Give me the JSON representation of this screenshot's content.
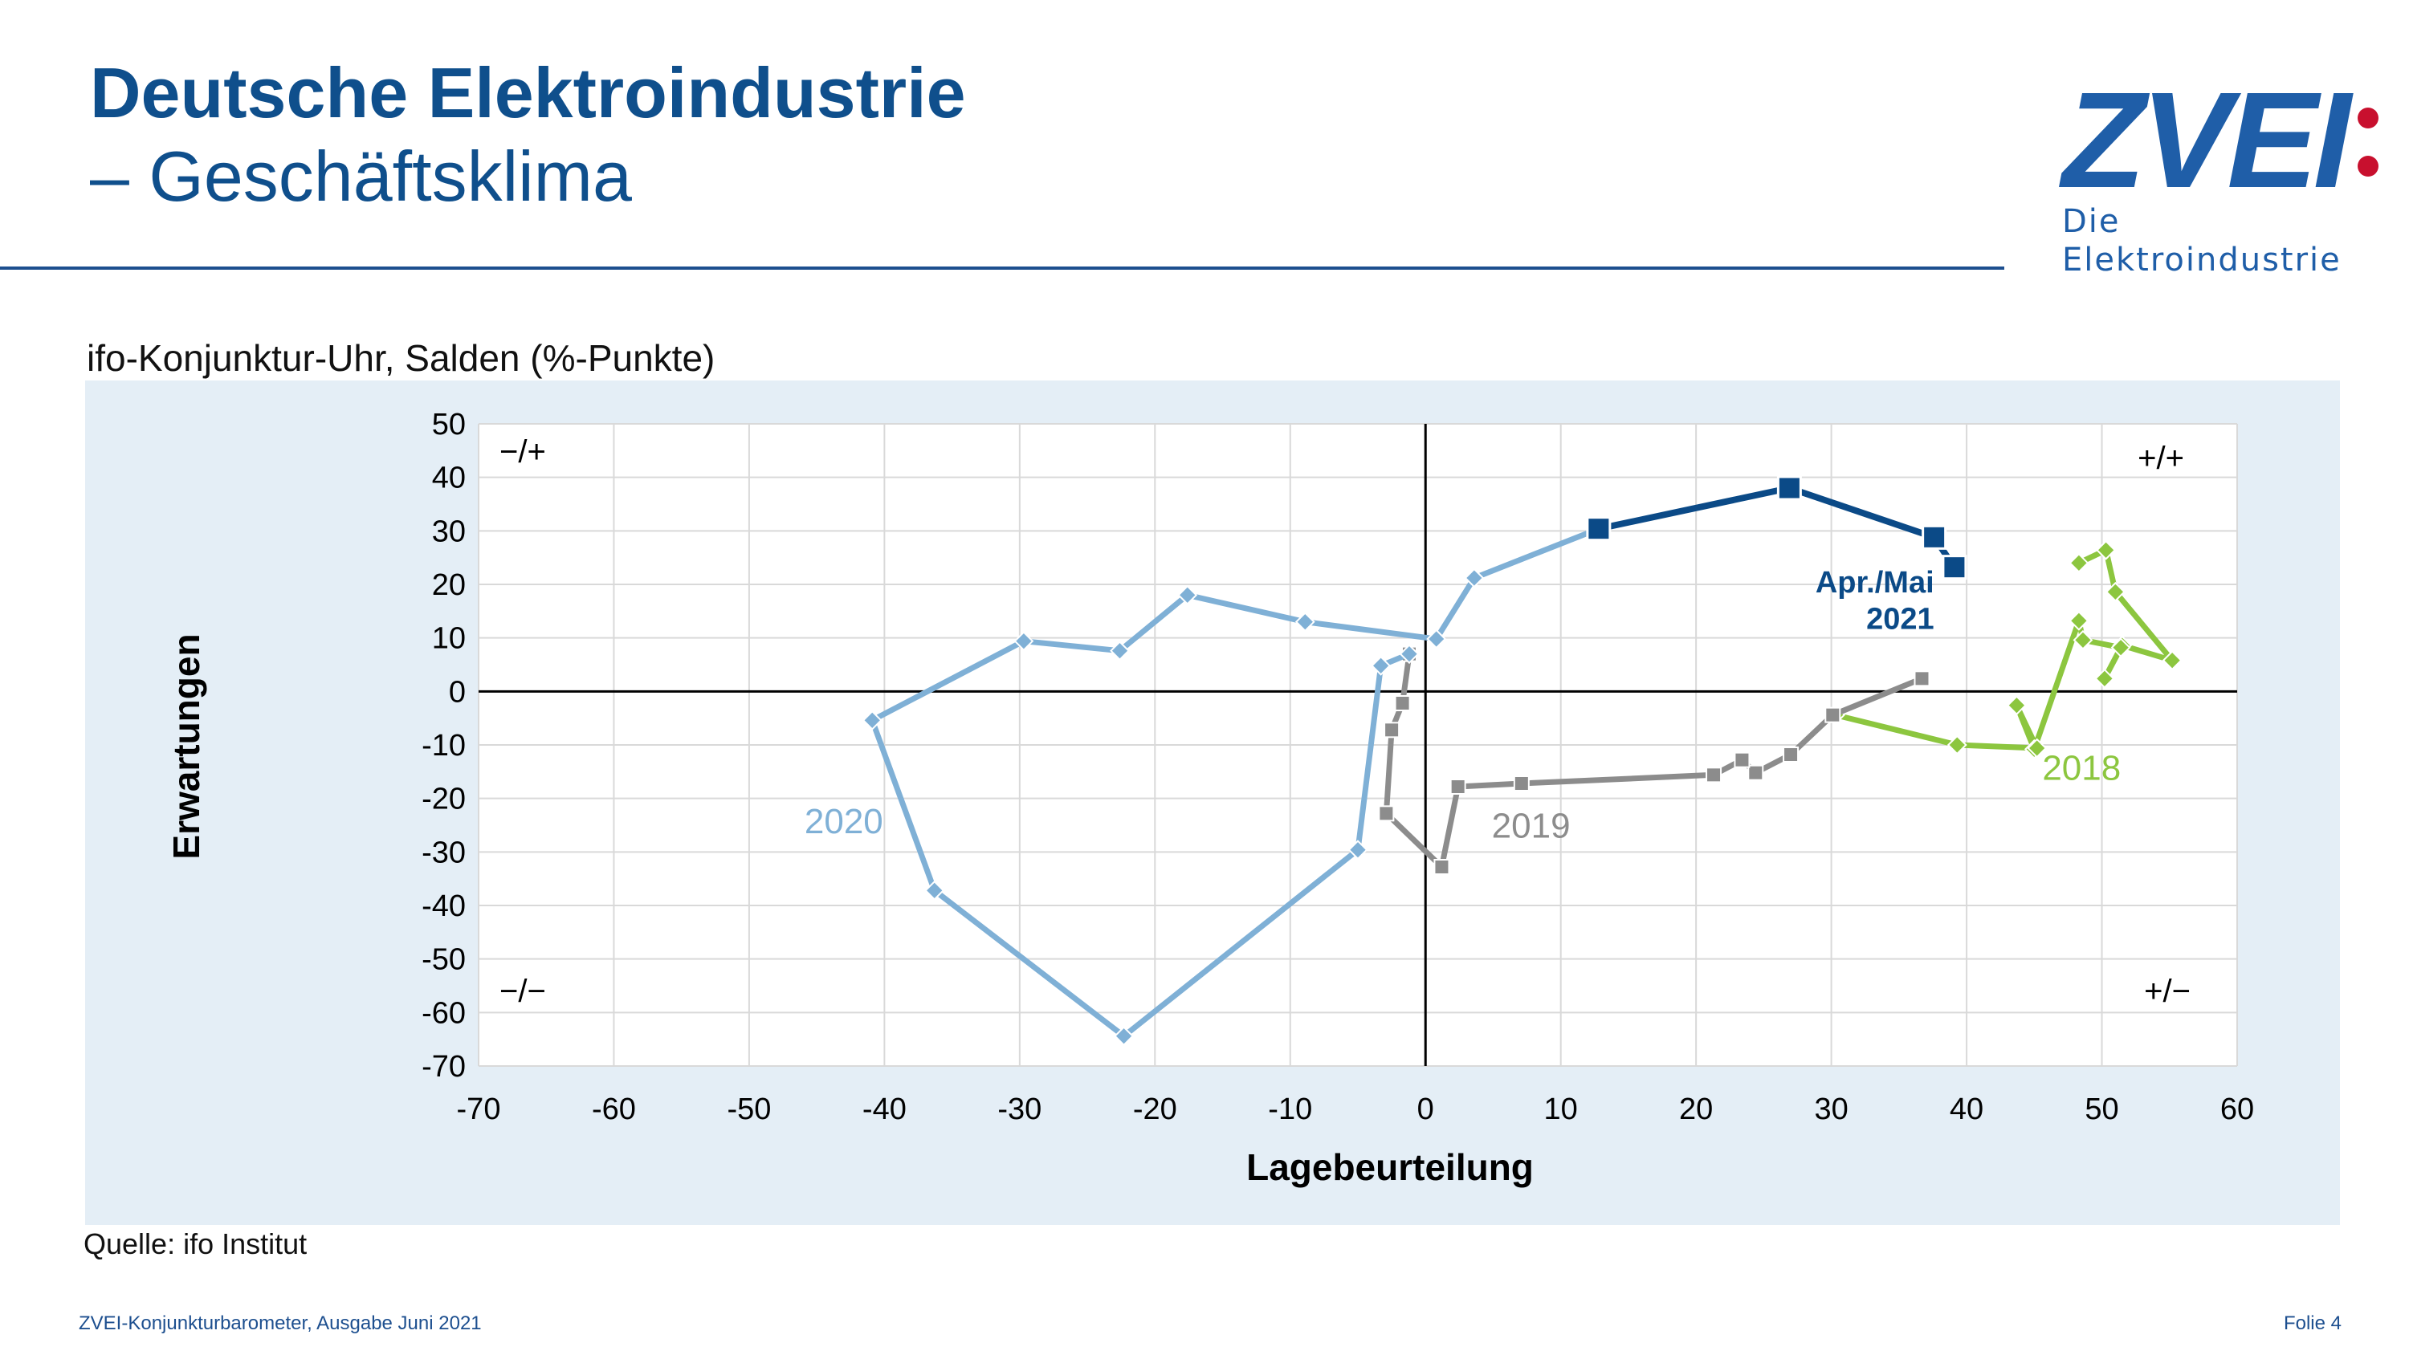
{
  "header": {
    "title": "Deutsche Elektroindustrie",
    "subtitle": "– Geschäftsklima"
  },
  "logo": {
    "wordmark": "ZVEI",
    "tagline": "Die Elektroindustrie",
    "dot_color": "#c8102e",
    "brand_color": "#1f5ea8"
  },
  "chart_heading": "ifo-Konjunktur-Uhr, Salden (%-Punkte)",
  "source": "Quelle: ifo Institut",
  "footer": {
    "left": "ZVEI-Konjunkturbarometer, Ausgabe Juni 2021",
    "right": "Folie 4"
  },
  "chart_data": {
    "type": "scatter",
    "title": "ifo-Konjunktur-Uhr, Salden (%-Punkte)",
    "xlabel": "Lagebeurteilung",
    "ylabel": "Erwartungen",
    "xlim": [
      -70,
      60
    ],
    "ylim": [
      -70,
      50
    ],
    "xticks": [
      -70,
      -60,
      -50,
      -40,
      -30,
      -20,
      -10,
      0,
      10,
      20,
      30,
      40,
      50,
      60
    ],
    "yticks": [
      50,
      40,
      30,
      20,
      10,
      0,
      -10,
      -20,
      -30,
      -40,
      -50,
      -60,
      -70
    ],
    "grid": true,
    "quadrant_labels": {
      "top_left": "−/+",
      "top_right": "+/+",
      "bottom_left": "−/−",
      "bottom_right": "+/−"
    },
    "annotation": {
      "line1": "Apr./Mai",
      "line2": "2021",
      "color": "#0b4a87"
    },
    "series": [
      {
        "name": "2018",
        "color": "#8cc63f",
        "marker": "diamond",
        "points": [
          [
            48.3,
            24
          ],
          [
            50.3,
            26.4
          ],
          [
            51,
            18.6
          ],
          [
            55.2,
            5.8
          ],
          [
            51.5,
            8.6
          ],
          [
            50.2,
            2.4
          ],
          [
            51.4,
            8.2
          ],
          [
            48.6,
            9.6
          ],
          [
            48.3,
            13.2
          ],
          [
            45,
            -10.8
          ],
          [
            43.7,
            -2.6
          ],
          [
            45.2,
            -10.6
          ],
          [
            39.3,
            -10
          ],
          [
            30.3,
            -4.4
          ]
        ]
      },
      {
        "name": "2019",
        "color": "#8c8c8c",
        "marker": "square",
        "points": [
          [
            36.7,
            2.4
          ],
          [
            30.1,
            -4.4
          ],
          [
            27,
            -11.8
          ],
          [
            24.4,
            -15.2
          ],
          [
            23.4,
            -12.8
          ],
          [
            21.3,
            -15.6
          ],
          [
            7.1,
            -17.2
          ],
          [
            2.4,
            -17.8
          ],
          [
            1.2,
            -32.8
          ],
          [
            -2.9,
            -22.8
          ],
          [
            -2.5,
            -7.2
          ],
          [
            -1.7,
            -2.2
          ],
          [
            -1.2,
            7
          ]
        ]
      },
      {
        "name": "2020",
        "color": "#7fb0d6",
        "marker": "diamond",
        "points": [
          [
            -1.2,
            7
          ],
          [
            -3.3,
            4.8
          ],
          [
            -5,
            -29.6
          ],
          [
            -22.3,
            -64.4
          ],
          [
            -36.3,
            -37.2
          ],
          [
            -40.9,
            -5.4
          ],
          [
            -29.7,
            9.4
          ],
          [
            -22.6,
            7.6
          ],
          [
            -17.6,
            18
          ],
          [
            -8.9,
            13
          ],
          [
            0.8,
            9.8
          ],
          [
            3.6,
            21.2
          ],
          [
            12.8,
            30.4
          ]
        ]
      },
      {
        "name": "",
        "color": "#0b4a87",
        "marker": "square",
        "points": [
          [
            12.8,
            30.4
          ],
          [
            26.9,
            38
          ],
          [
            37.6,
            28.8
          ],
          [
            39.1,
            23.2
          ]
        ]
      }
    ]
  }
}
